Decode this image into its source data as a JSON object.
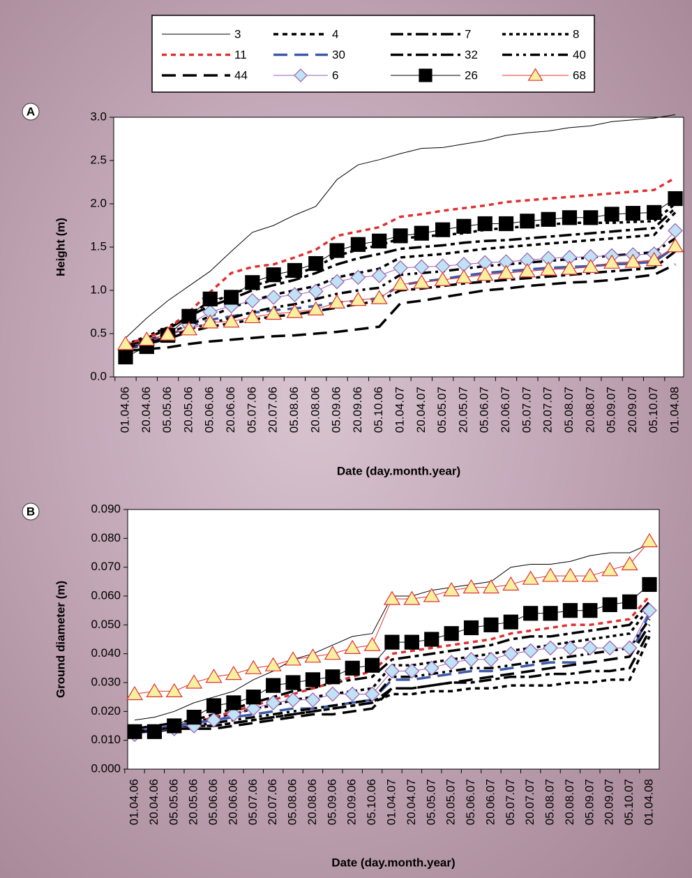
{
  "chart_data": [
    {
      "type": "line",
      "label": "A",
      "ylabel": "Height (m)",
      "xlabel": "Date (day.month.year)",
      "categories": [
        "01.04.06",
        "20.04.06",
        "05.05.06",
        "20.05.06",
        "05.06.06",
        "20.06.06",
        "05.07.06",
        "20.07.06",
        "05.08.06",
        "20.08.06",
        "05.09.06",
        "20.09.06",
        "05.10.06",
        "01.04.07",
        "20.04.07",
        "05.05.07",
        "20.05.07",
        "05.06.07",
        "20.06.07",
        "05.07.07",
        "20.07.07",
        "05.08.07",
        "20.08.07",
        "05.09.07",
        "20.09.07",
        "05.10.07",
        "01.04.08"
      ],
      "ylim": [
        0,
        3
      ],
      "yticks": [
        {
          "value": 0,
          "label": "0.0"
        },
        0.5,
        {
          "value": 1,
          "label": "1.0"
        },
        1.5,
        {
          "value": 2,
          "label": "2.0"
        },
        2.5,
        {
          "value": 3,
          "label": "3.0"
        }
      ],
      "series": [
        {
          "name": "3",
          "color": "#000000",
          "style": "solid",
          "width": 1,
          "values": [
            0.45,
            0.68,
            0.88,
            1.05,
            1.22,
            1.45,
            1.67,
            1.75,
            1.87,
            1.97,
            2.28,
            2.45,
            2.51,
            2.58,
            2.64,
            2.65,
            2.69,
            2.73,
            2.79,
            2.82,
            2.84,
            2.88,
            2.9,
            2.95,
            2.97,
            2.99,
            3.03
          ]
        },
        {
          "name": "4",
          "color": "#000000",
          "style": "dash",
          "width": 3.5,
          "values": [
            0.35,
            0.42,
            0.5,
            0.6,
            0.7,
            0.8,
            0.88,
            0.95,
            1,
            1.05,
            1.15,
            1.2,
            1.25,
            1.38,
            1.4,
            1.42,
            1.45,
            1.48,
            1.5,
            1.52,
            1.54,
            1.56,
            1.58,
            1.6,
            1.62,
            1.64,
            1.9
          ]
        },
        {
          "name": "7",
          "color": "#000000",
          "style": "dashdot",
          "width": 3.5,
          "values": [
            0.36,
            0.45,
            0.55,
            0.7,
            0.82,
            0.9,
            1,
            1.06,
            1.12,
            1.2,
            1.3,
            1.37,
            1.42,
            1.48,
            1.5,
            1.52,
            1.55,
            1.57,
            1.58,
            1.6,
            1.62,
            1.64,
            1.66,
            1.68,
            1.7,
            1.72,
            1.95
          ]
        },
        {
          "name": "8",
          "color": "#000000",
          "style": "dot",
          "width": 3.5,
          "values": [
            0.37,
            0.47,
            0.57,
            0.73,
            0.86,
            0.95,
            1.05,
            1.12,
            1.18,
            1.27,
            1.4,
            1.47,
            1.52,
            1.6,
            1.62,
            1.64,
            1.66,
            1.7,
            1.72,
            1.74,
            1.76,
            1.78,
            1.78,
            1.78,
            1.79,
            1.8,
            2
          ]
        },
        {
          "name": "11",
          "color": "#e03030",
          "style": "dash",
          "width": 3.5,
          "values": [
            0.38,
            0.45,
            0.55,
            0.75,
            0.98,
            1.2,
            1.27,
            1.3,
            1.38,
            1.47,
            1.63,
            1.68,
            1.73,
            1.85,
            1.88,
            1.92,
            1.95,
            1.98,
            2.02,
            2.04,
            2.06,
            2.08,
            2.1,
            2.12,
            2.14,
            2.16,
            2.3
          ]
        },
        {
          "name": "30",
          "color": "#3c5aa8",
          "style": "longdash",
          "width": 3.5,
          "values": [
            0.33,
            0.4,
            0.48,
            0.58,
            0.66,
            0.7,
            0.74,
            0.77,
            0.79,
            0.82,
            0.86,
            0.88,
            0.91,
            1.06,
            1.1,
            1.13,
            1.17,
            1.2,
            1.22,
            1.24,
            1.26,
            1.27,
            1.28,
            1.3,
            1.31,
            1.33,
            1.5
          ]
        },
        {
          "name": "32",
          "color": "#000000",
          "style": "dashdot",
          "width": 3.5,
          "values": [
            0.32,
            0.38,
            0.44,
            0.52,
            0.58,
            0.62,
            0.66,
            0.7,
            0.72,
            0.76,
            0.8,
            0.84,
            0.88,
            1,
            1.02,
            1.05,
            1.08,
            1.1,
            1.12,
            1.14,
            1.16,
            1.18,
            1.2,
            1.22,
            1.24,
            1.26,
            1.45
          ]
        },
        {
          "name": "40",
          "color": "#000000",
          "style": "dashdotdot",
          "width": 3.5,
          "values": [
            0.34,
            0.4,
            0.46,
            0.55,
            0.62,
            0.68,
            0.75,
            0.8,
            0.84,
            0.9,
            0.96,
            1,
            1.03,
            1.18,
            1.2,
            1.22,
            1.25,
            1.28,
            1.3,
            1.32,
            1.34,
            1.36,
            1.38,
            1.4,
            1.42,
            1.44,
            1.6
          ]
        },
        {
          "name": "44",
          "color": "#000000",
          "style": "longdash",
          "width": 3.5,
          "values": [
            0.3,
            0.32,
            0.34,
            0.38,
            0.41,
            0.43,
            0.45,
            0.47,
            0.48,
            0.5,
            0.52,
            0.55,
            0.58,
            0.85,
            0.88,
            0.92,
            0.96,
            1,
            1.02,
            1.05,
            1.07,
            1.09,
            1.1,
            1.12,
            1.15,
            1.18,
            1.3
          ]
        },
        {
          "name": "6",
          "color": "#9a5cb4",
          "style": "solid",
          "width": 1,
          "marker": "diamond",
          "marker_color": "#bfe3f2",
          "values": [
            0.3,
            0.4,
            0.48,
            0.6,
            0.75,
            0.82,
            0.88,
            0.92,
            0.95,
            0.99,
            1.1,
            1.15,
            1.17,
            1.26,
            1.27,
            1.28,
            1.3,
            1.32,
            1.33,
            1.35,
            1.37,
            1.38,
            1.39,
            1.4,
            1.41,
            1.42,
            1.69
          ]
        },
        {
          "name": "26",
          "color": "#000000",
          "style": "solid",
          "width": 1,
          "marker": "square",
          "marker_color": "#000000",
          "values": [
            0.23,
            0.35,
            0.48,
            0.7,
            0.9,
            0.92,
            1.09,
            1.18,
            1.23,
            1.31,
            1.46,
            1.53,
            1.57,
            1.63,
            1.66,
            1.7,
            1.74,
            1.77,
            1.77,
            1.8,
            1.82,
            1.84,
            1.84,
            1.88,
            1.89,
            1.9,
            2.06
          ]
        },
        {
          "name": "68",
          "color": "#e03030",
          "style": "solid",
          "width": 1,
          "marker": "triangle",
          "marker_color": "#f6f0a0",
          "values": [
            0.38,
            0.43,
            0.49,
            0.55,
            0.63,
            0.64,
            0.69,
            0.73,
            0.75,
            0.78,
            0.86,
            0.89,
            0.91,
            1.07,
            1.09,
            1.12,
            1.15,
            1.18,
            1.2,
            1.22,
            1.24,
            1.25,
            1.27,
            1.32,
            1.33,
            1.35,
            1.51
          ]
        }
      ]
    },
    {
      "type": "line",
      "label": "B",
      "ylabel": "Ground diameter (m)",
      "xlabel": "Date (day.month.year)",
      "categories": [
        "01.04.06",
        "20.04.06",
        "05.05.06",
        "20.05.06",
        "05.06.06",
        "20.06.06",
        "05.07.06",
        "20.07.06",
        "05.08.06",
        "20.08.06",
        "05.09.06",
        "20.09.06",
        "05.10.06",
        "01.04.07",
        "20.04.07",
        "05.05.07",
        "20.05.07",
        "05.06.07",
        "20.06.07",
        "05.07.07",
        "20.07.07",
        "05.08.07",
        "20.08.07",
        "05.09.07",
        "20.09.07",
        "05.10.07",
        "01.04.08"
      ],
      "ylim": [
        0,
        0.09
      ],
      "yticks": [
        {
          "value": 0,
          "label": "0.000"
        },
        {
          "value": 0.01,
          "label": "0.010"
        },
        {
          "value": 0.02,
          "label": "0.020"
        },
        {
          "value": 0.03,
          "label": "0.030"
        },
        {
          "value": 0.04,
          "label": "0.040"
        },
        {
          "value": 0.05,
          "label": "0.050"
        },
        {
          "value": 0.06,
          "label": "0.060"
        },
        {
          "value": 0.07,
          "label": "0.070"
        },
        {
          "value": 0.08,
          "label": "0.080"
        },
        {
          "value": 0.09,
          "label": "0.090"
        }
      ],
      "series": [
        {
          "values": [
            0.017,
            0.018,
            0.02,
            0.023,
            0.025,
            0.027,
            0.031,
            0.034,
            0.038,
            0.04,
            0.043,
            0.046,
            0.047,
            0.06,
            0.06,
            0.062,
            0.063,
            0.064,
            0.065,
            0.07,
            0.071,
            0.071,
            0.072,
            0.074,
            0.075,
            0.075,
            0.078
          ]
        },
        {
          "values": [
            0.013,
            0.013,
            0.014,
            0.015,
            0.015,
            0.016,
            0.017,
            0.018,
            0.019,
            0.02,
            0.021,
            0.022,
            0.023,
            0.026,
            0.026,
            0.027,
            0.027,
            0.028,
            0.028,
            0.029,
            0.029,
            0.029,
            0.03,
            0.03,
            0.031,
            0.031,
            0.046
          ]
        },
        {
          "values": [
            0.014,
            0.015,
            0.016,
            0.017,
            0.019,
            0.021,
            0.023,
            0.025,
            0.027,
            0.028,
            0.03,
            0.031,
            0.032,
            0.038,
            0.039,
            0.04,
            0.041,
            0.042,
            0.043,
            0.045,
            0.046,
            0.046,
            0.047,
            0.048,
            0.049,
            0.05,
            0.058
          ]
        },
        {
          "values": [
            0.013,
            0.014,
            0.015,
            0.016,
            0.018,
            0.019,
            0.021,
            0.022,
            0.024,
            0.025,
            0.026,
            0.027,
            0.028,
            0.036,
            0.036,
            0.037,
            0.038,
            0.039,
            0.04,
            0.041,
            0.042,
            0.043,
            0.044,
            0.045,
            0.046,
            0.047,
            0.056
          ]
        },
        {
          "values": [
            0.013,
            0.014,
            0.015,
            0.016,
            0.018,
            0.02,
            0.022,
            0.024,
            0.026,
            0.028,
            0.03,
            0.032,
            0.034,
            0.04,
            0.041,
            0.042,
            0.043,
            0.044,
            0.045,
            0.047,
            0.048,
            0.049,
            0.05,
            0.05,
            0.051,
            0.052,
            0.06
          ]
        },
        {
          "values": [
            0.013,
            0.014,
            0.015,
            0.016,
            0.017,
            0.018,
            0.019,
            0.02,
            0.021,
            0.021,
            0.022,
            0.023,
            0.024,
            0.031,
            0.031,
            0.032,
            0.033,
            0.034,
            0.034,
            0.035,
            0.036,
            0.037,
            0.037,
            0.037,
            0.038,
            0.039,
            0.054
          ]
        },
        {
          "values": [
            0.013,
            0.013,
            0.014,
            0.015,
            0.015,
            0.016,
            0.017,
            0.018,
            0.019,
            0.02,
            0.021,
            0.022,
            0.023,
            0.028,
            0.028,
            0.029,
            0.03,
            0.03,
            0.031,
            0.032,
            0.032,
            0.033,
            0.033,
            0.034,
            0.034,
            0.035,
            0.048
          ]
        },
        {
          "values": [
            0.013,
            0.014,
            0.014,
            0.015,
            0.016,
            0.017,
            0.018,
            0.019,
            0.02,
            0.021,
            0.022,
            0.023,
            0.024,
            0.032,
            0.032,
            0.033,
            0.034,
            0.035,
            0.035,
            0.036,
            0.037,
            0.038,
            0.039,
            0.04,
            0.041,
            0.042,
            0.052
          ]
        },
        {
          "values": [
            0.013,
            0.013,
            0.014,
            0.014,
            0.014,
            0.015,
            0.016,
            0.017,
            0.018,
            0.019,
            0.019,
            0.02,
            0.021,
            0.028,
            0.028,
            0.029,
            0.03,
            0.031,
            0.032,
            0.033,
            0.034,
            0.035,
            0.036,
            0.037,
            0.038,
            0.039,
            0.05
          ]
        },
        {
          "values": [
            0.012,
            0.013,
            0.014,
            0.015,
            0.017,
            0.019,
            0.021,
            0.023,
            0.024,
            0.024,
            0.026,
            0.026,
            0.026,
            0.034,
            0.034,
            0.035,
            0.037,
            0.038,
            0.038,
            0.04,
            0.041,
            0.042,
            0.042,
            0.042,
            0.042,
            0.042,
            0.055
          ]
        },
        {
          "values": [
            0.013,
            0.013,
            0.015,
            0.018,
            0.022,
            0.023,
            0.025,
            0.029,
            0.03,
            0.031,
            0.032,
            0.035,
            0.036,
            0.044,
            0.044,
            0.045,
            0.047,
            0.049,
            0.05,
            0.051,
            0.054,
            0.054,
            0.055,
            0.055,
            0.057,
            0.058,
            0.064
          ]
        },
        {
          "values": [
            0.026,
            0.027,
            0.027,
            0.03,
            0.032,
            0.033,
            0.035,
            0.036,
            0.038,
            0.039,
            0.04,
            0.042,
            0.043,
            0.059,
            0.059,
            0.06,
            0.062,
            0.063,
            0.063,
            0.064,
            0.066,
            0.067,
            0.067,
            0.067,
            0.069,
            0.071,
            0.079
          ]
        }
      ]
    }
  ]
}
